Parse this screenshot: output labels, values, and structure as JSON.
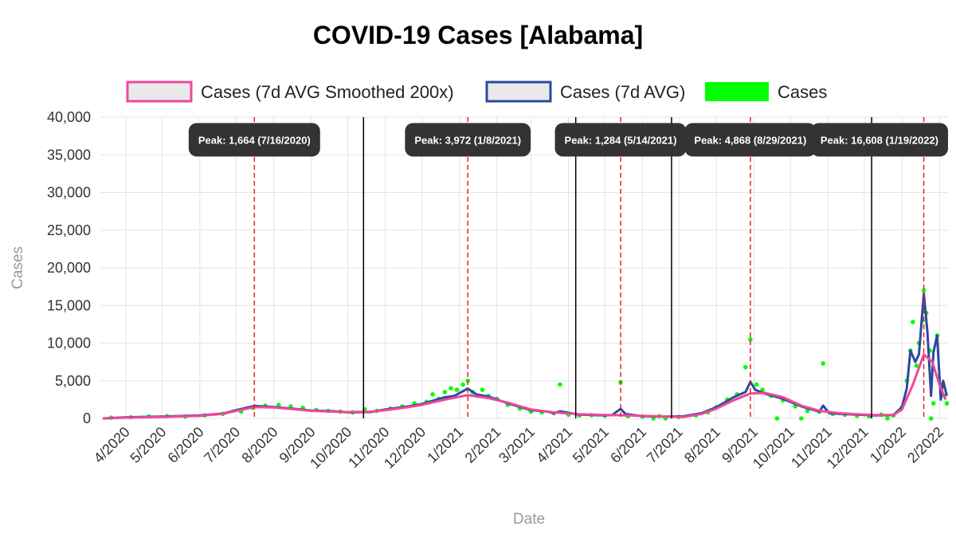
{
  "chart_data": {
    "type": "line",
    "title": "COVID-19 Cases [Alabama]",
    "xlabel": "Date",
    "ylabel": "Cases",
    "ylim": [
      0,
      40000
    ],
    "y_ticks": [
      0,
      5000,
      10000,
      15000,
      20000,
      25000,
      30000,
      35000,
      40000
    ],
    "y_tick_labels": [
      "0",
      "5,000",
      "10,000",
      "15,000",
      "20,000",
      "25,000",
      "30,000",
      "35,000",
      "40,000"
    ],
    "x_ticks": [
      "2020-04-01",
      "2020-05-01",
      "2020-06-01",
      "2020-07-01",
      "2020-08-01",
      "2020-09-01",
      "2020-10-01",
      "2020-11-01",
      "2020-12-01",
      "2021-01-01",
      "2021-02-01",
      "2021-03-01",
      "2021-04-01",
      "2021-05-01",
      "2021-06-01",
      "2021-07-01",
      "2021-08-01",
      "2021-09-01",
      "2021-10-01",
      "2021-11-01",
      "2021-12-01",
      "2022-01-01",
      "2022-02-01"
    ],
    "x_tick_labels": [
      "4/2020",
      "5/2020",
      "6/2020",
      "7/2020",
      "8/2020",
      "9/2020",
      "10/2020",
      "11/2020",
      "12/2020",
      "1/2021",
      "2/2021",
      "3/2021",
      "4/2021",
      "5/2021",
      "6/2021",
      "7/2021",
      "8/2021",
      "9/2021",
      "10/2021",
      "11/2021",
      "12/2021",
      "1/2022",
      "2/2022"
    ],
    "xlim": [
      "2020-03-11",
      "2022-02-08"
    ],
    "grid": true,
    "legend_position": "top",
    "legend": [
      {
        "label": "Cases (7d AVG Smoothed 200x)",
        "color": "#f0479d",
        "kind": "line"
      },
      {
        "label": "Cases (7d AVG)",
        "color": "#2b4a9b",
        "kind": "line"
      },
      {
        "label": "Cases",
        "color": "#00ff00",
        "kind": "point"
      }
    ],
    "series": [
      {
        "name": "Cases (7d AVG Smoothed 200x)",
        "color": "#f0479d",
        "x": [
          "2020-03-13",
          "2020-04-01",
          "2020-05-01",
          "2020-06-01",
          "2020-06-20",
          "2020-07-01",
          "2020-07-16",
          "2020-08-01",
          "2020-08-20",
          "2020-09-01",
          "2020-09-20",
          "2020-10-01",
          "2020-10-20",
          "2020-11-01",
          "2020-11-20",
          "2020-12-01",
          "2020-12-20",
          "2021-01-08",
          "2021-01-25",
          "2021-02-10",
          "2021-03-01",
          "2021-03-20",
          "2021-04-10",
          "2021-05-01",
          "2021-05-14",
          "2021-06-01",
          "2021-06-20",
          "2021-07-05",
          "2021-07-20",
          "2021-08-01",
          "2021-08-15",
          "2021-08-29",
          "2021-09-10",
          "2021-09-25",
          "2021-10-10",
          "2021-10-25",
          "2021-11-10",
          "2021-11-25",
          "2021-12-10",
          "2021-12-25",
          "2022-01-01",
          "2022-01-10",
          "2022-01-19",
          "2022-01-26",
          "2022-02-01",
          "2022-02-06"
        ],
        "y": [
          0,
          100,
          200,
          350,
          600,
          1000,
          1500,
          1450,
          1200,
          1000,
          900,
          850,
          900,
          1100,
          1500,
          1800,
          2500,
          3100,
          2700,
          2100,
          1200,
          800,
          550,
          450,
          420,
          350,
          250,
          200,
          600,
          1300,
          2400,
          3300,
          3400,
          2800,
          1700,
          1000,
          700,
          550,
          450,
          450,
          1200,
          4500,
          8500,
          7500,
          4500,
          2500
        ]
      },
      {
        "name": "Cases (7d AVG)",
        "color": "#2b4a9b",
        "x": [
          "2020-03-13",
          "2020-04-01",
          "2020-05-01",
          "2020-06-01",
          "2020-06-20",
          "2020-07-01",
          "2020-07-16",
          "2020-08-01",
          "2020-08-20",
          "2020-09-01",
          "2020-09-20",
          "2020-10-01",
          "2020-10-20",
          "2020-11-01",
          "2020-11-20",
          "2020-12-01",
          "2020-12-20",
          "2020-12-28",
          "2021-01-08",
          "2021-01-15",
          "2021-01-25",
          "2021-02-10",
          "2021-03-01",
          "2021-03-15",
          "2021-03-20",
          "2021-03-25",
          "2021-04-10",
          "2021-05-01",
          "2021-05-07",
          "2021-05-14",
          "2021-05-18",
          "2021-06-01",
          "2021-06-20",
          "2021-07-05",
          "2021-07-20",
          "2021-08-01",
          "2021-08-15",
          "2021-08-25",
          "2021-08-29",
          "2021-09-02",
          "2021-09-10",
          "2021-09-25",
          "2021-10-10",
          "2021-10-25",
          "2021-10-28",
          "2021-11-02",
          "2021-11-10",
          "2021-11-25",
          "2021-12-10",
          "2021-12-25",
          "2022-01-01",
          "2022-01-05",
          "2022-01-08",
          "2022-01-12",
          "2022-01-15",
          "2022-01-19",
          "2022-01-22",
          "2022-01-25",
          "2022-01-27",
          "2022-01-30",
          "2022-02-02",
          "2022-02-04",
          "2022-02-07"
        ],
        "y": [
          0,
          150,
          250,
          400,
          650,
          1100,
          1664,
          1500,
          1250,
          1050,
          950,
          800,
          850,
          1200,
          1600,
          1900,
          2800,
          3000,
          3972,
          3200,
          2900,
          2000,
          1100,
          900,
          700,
          950,
          500,
          400,
          450,
          1284,
          600,
          300,
          250,
          300,
          700,
          1500,
          2800,
          3500,
          4868,
          3800,
          3300,
          2600,
          1600,
          900,
          1700,
          700,
          600,
          500,
          400,
          450,
          1500,
          4000,
          9000,
          7500,
          8500,
          16608,
          11500,
          3000,
          8800,
          11000,
          2500,
          5000,
          3000
        ]
      },
      {
        "name": "Cases",
        "color": "#00ff00",
        "x": [
          "2020-03-20",
          "2020-04-05",
          "2020-04-20",
          "2020-05-05",
          "2020-05-20",
          "2020-06-05",
          "2020-06-20",
          "2020-07-05",
          "2020-07-15",
          "2020-07-25",
          "2020-08-05",
          "2020-08-15",
          "2020-08-25",
          "2020-09-05",
          "2020-09-15",
          "2020-09-25",
          "2020-10-05",
          "2020-10-15",
          "2020-10-25",
          "2020-11-05",
          "2020-11-15",
          "2020-11-25",
          "2020-12-05",
          "2020-12-10",
          "2020-12-15",
          "2020-12-20",
          "2020-12-25",
          "2020-12-30",
          "2021-01-04",
          "2021-01-08",
          "2021-01-12",
          "2021-01-16",
          "2021-01-20",
          "2021-01-25",
          "2021-02-01",
          "2021-02-10",
          "2021-02-20",
          "2021-03-01",
          "2021-03-10",
          "2021-03-20",
          "2021-03-25",
          "2021-04-01",
          "2021-04-10",
          "2021-04-20",
          "2021-05-01",
          "2021-05-14",
          "2021-05-20",
          "2021-06-01",
          "2021-06-15",
          "2021-06-20",
          "2021-07-01",
          "2021-07-15",
          "2021-07-25",
          "2021-08-01",
          "2021-08-10",
          "2021-08-18",
          "2021-08-25",
          "2021-08-29",
          "2021-09-03",
          "2021-09-08",
          "2021-09-15",
          "2021-09-25",
          "2021-10-05",
          "2021-10-15",
          "2021-10-25",
          "2021-10-28",
          "2021-11-05",
          "2021-11-15",
          "2021-11-25",
          "2021-12-05",
          "2021-12-15",
          "2021-12-25",
          "2022-01-01",
          "2022-01-05",
          "2022-01-08",
          "2022-01-10",
          "2022-01-13",
          "2022-01-15",
          "2022-01-18",
          "2022-01-19",
          "2022-01-21",
          "2022-01-24",
          "2022-01-27",
          "2022-01-30",
          "2022-02-02",
          "2022-02-05",
          "2022-02-07",
          "2021-12-20",
          "2022-01-25",
          "2021-06-10",
          "2021-09-20",
          "2021-10-10"
        ],
        "y": [
          100,
          150,
          250,
          300,
          250,
          400,
          600,
          900,
          1400,
          1700,
          1800,
          1600,
          1400,
          1100,
          1000,
          900,
          800,
          1200,
          1000,
          1300,
          1600,
          2000,
          2200,
          3200,
          2600,
          3500,
          4000,
          3800,
          4500,
          5000,
          3500,
          3000,
          3800,
          3000,
          2600,
          1800,
          1300,
          900,
          800,
          700,
          4500,
          500,
          400,
          450,
          350,
          4800,
          300,
          250,
          300,
          0,
          200,
          400,
          800,
          1500,
          2500,
          3200,
          6800,
          10500,
          4500,
          3800,
          3000,
          2400,
          1600,
          1000,
          900,
          7300,
          600,
          500,
          350,
          300,
          500,
          400,
          1500,
          5000,
          9000,
          12800,
          7000,
          10000,
          13000,
          17000,
          14000,
          9000,
          2000,
          11000,
          4500,
          3000,
          2000,
          0,
          0,
          0,
          0,
          0
        ]
      }
    ],
    "peaks": [
      {
        "date": "2020-07-16",
        "label": "Peak: 1,664 (7/16/2020)",
        "color": "#e8222a"
      },
      {
        "date": "2021-01-08",
        "label": "Peak: 3,972 (1/8/2021)",
        "color": "#e8222a"
      },
      {
        "date": "2021-05-14",
        "label": "Peak: 1,284 (5/14/2021)",
        "color": "#e8222a"
      },
      {
        "date": "2021-08-29",
        "label": "Peak: 4,868 (8/29/2021)",
        "color": "#e8222a"
      },
      {
        "date": "2022-01-19",
        "label": "Peak: 16,608 (1/19/2022)",
        "color": "#e8222a"
      }
    ],
    "wave_boundaries": [
      "2020-10-14",
      "2021-04-07",
      "2021-06-25",
      "2021-12-07"
    ]
  }
}
